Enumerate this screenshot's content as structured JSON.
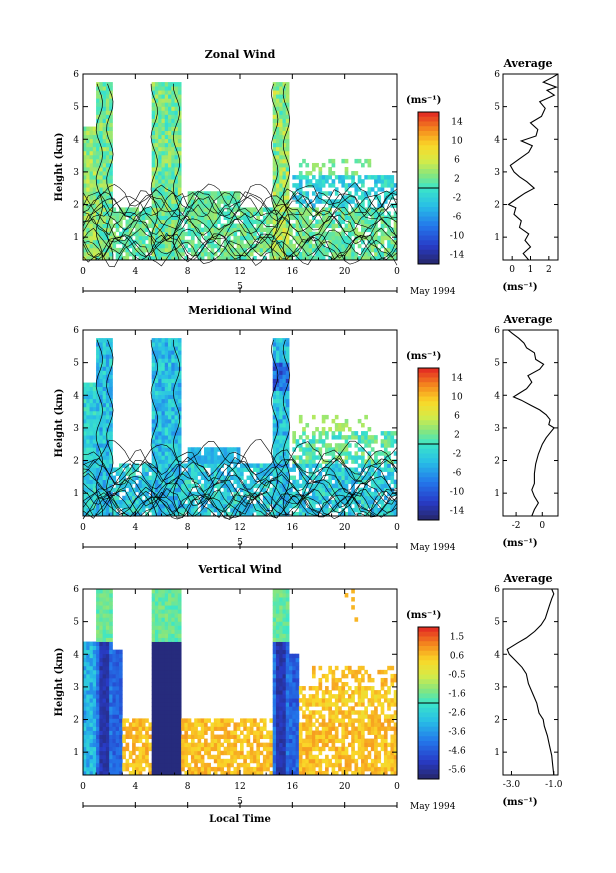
{
  "chart_data": [
    {
      "type": "heatmap",
      "title": "Zonal Wind",
      "ylabel": "Height (km)",
      "xlabel": "",
      "xlim": [
        0,
        24
      ],
      "ylim": [
        0.3,
        6
      ],
      "xticks": [
        "0",
        "4",
        "8",
        "12",
        "16",
        "20",
        "0"
      ],
      "yticks": [
        "1",
        "2",
        "3",
        "4",
        "5",
        "6"
      ],
      "date_marker": "5",
      "date_label": "May 1994",
      "colorbar": {
        "unit": "(ms⁻¹)",
        "range": [
          -16,
          16
        ],
        "ticks": [
          "14",
          "10",
          "6",
          "2",
          "-2",
          "-6",
          "-10",
          "-14"
        ]
      },
      "contours": true,
      "profile": {
        "title": "Average",
        "xlabel": "(ms⁻¹)",
        "xlim": [
          -0.5,
          2.5
        ],
        "xticks": [
          "0",
          "1",
          "2"
        ],
        "yticks": [
          "1",
          "2",
          "3",
          "4",
          "5",
          "6"
        ],
        "points": [
          [
            0.9,
            0.3
          ],
          [
            0.6,
            0.5
          ],
          [
            1.0,
            0.7
          ],
          [
            0.7,
            0.9
          ],
          [
            0.9,
            1.1
          ],
          [
            0.4,
            1.3
          ],
          [
            0.5,
            1.5
          ],
          [
            0.1,
            1.7
          ],
          [
            0.2,
            1.9
          ],
          [
            -0.2,
            2.0
          ],
          [
            0.3,
            2.2
          ],
          [
            0.7,
            2.35
          ],
          [
            1.2,
            2.5
          ],
          [
            0.8,
            2.7
          ],
          [
            0.4,
            2.85
          ],
          [
            0.1,
            3.0
          ],
          [
            -0.1,
            3.2
          ],
          [
            0.4,
            3.4
          ],
          [
            0.9,
            3.6
          ],
          [
            1.1,
            3.8
          ],
          [
            0.5,
            3.95
          ],
          [
            1.3,
            4.1
          ],
          [
            1.4,
            4.3
          ],
          [
            1.0,
            4.5
          ],
          [
            1.6,
            4.7
          ],
          [
            1.8,
            4.95
          ],
          [
            1.5,
            5.15
          ],
          [
            2.3,
            5.35
          ],
          [
            1.9,
            5.5
          ],
          [
            2.4,
            5.6
          ],
          [
            1.7,
            5.75
          ],
          [
            2.2,
            5.9
          ],
          [
            2.5,
            6.0
          ]
        ]
      }
    },
    {
      "type": "heatmap",
      "title": "Meridional Wind",
      "ylabel": "Height (km)",
      "xlabel": "",
      "xlim": [
        0,
        24
      ],
      "ylim": [
        0.3,
        6
      ],
      "xticks": [
        "0",
        "4",
        "8",
        "12",
        "16",
        "20",
        "0"
      ],
      "yticks": [
        "1",
        "2",
        "3",
        "4",
        "5",
        "6"
      ],
      "date_marker": "5",
      "date_label": "May 1994",
      "colorbar": {
        "unit": "(ms⁻¹)",
        "range": [
          -16,
          16
        ],
        "ticks": [
          "14",
          "10",
          "6",
          "2",
          "-2",
          "-6",
          "-10",
          "-14"
        ]
      },
      "contours": true,
      "profile": {
        "title": "Average",
        "xlabel": "(ms⁻¹)",
        "xlim": [
          -3,
          1.2
        ],
        "xticks": [
          "-2",
          "0"
        ],
        "yticks": [
          "1",
          "2",
          "3",
          "4",
          "5",
          "6"
        ],
        "points": [
          [
            -0.8,
            0.3
          ],
          [
            -0.6,
            0.5
          ],
          [
            -0.3,
            0.7
          ],
          [
            -0.6,
            0.9
          ],
          [
            -0.8,
            1.1
          ],
          [
            -0.6,
            1.3
          ],
          [
            -0.6,
            1.6
          ],
          [
            -0.5,
            1.9
          ],
          [
            -0.3,
            2.2
          ],
          [
            0.0,
            2.5
          ],
          [
            0.3,
            2.7
          ],
          [
            0.6,
            2.85
          ],
          [
            0.9,
            3.0
          ],
          [
            0.5,
            3.1
          ],
          [
            0.6,
            3.25
          ],
          [
            0.3,
            3.4
          ],
          [
            -0.2,
            3.55
          ],
          [
            -0.9,
            3.7
          ],
          [
            -1.6,
            3.85
          ],
          [
            -2.2,
            3.95
          ],
          [
            -1.8,
            4.05
          ],
          [
            -1.2,
            4.2
          ],
          [
            -0.8,
            4.4
          ],
          [
            -1.1,
            4.6
          ],
          [
            -0.2,
            4.8
          ],
          [
            0.1,
            4.95
          ],
          [
            -0.5,
            5.1
          ],
          [
            -0.6,
            5.3
          ],
          [
            -1.2,
            5.45
          ],
          [
            -1.4,
            5.6
          ],
          [
            -1.8,
            5.75
          ],
          [
            -2.3,
            5.9
          ],
          [
            -2.6,
            6.0
          ]
        ]
      }
    },
    {
      "type": "heatmap",
      "title": "Vertical Wind",
      "ylabel": "Height (km)",
      "xlabel": "Local Time",
      "xlim": [
        0,
        24
      ],
      "ylim": [
        0.3,
        6
      ],
      "xticks": [
        "0",
        "4",
        "8",
        "12",
        "16",
        "20",
        "0"
      ],
      "yticks": [
        "1",
        "2",
        "3",
        "4",
        "5",
        "6"
      ],
      "date_marker": "5",
      "date_label": "May 1994",
      "colorbar": {
        "unit": "(ms⁻¹)",
        "range": [
          -6.0,
          2.0
        ],
        "ticks": [
          "1.5",
          "0.6",
          "-0.5",
          "-1.6",
          "-2.6",
          "-3.6",
          "-4.6",
          "-5.6"
        ]
      },
      "contours": false,
      "profile": {
        "title": "Average",
        "xlabel": "(ms⁻¹)",
        "xlim": [
          -3.4,
          -0.8
        ],
        "xticks": [
          "-3.0",
          "-1.0"
        ],
        "yticks": [
          "1",
          "2",
          "3",
          "4",
          "5",
          "6"
        ],
        "points": [
          [
            -1.0,
            0.3
          ],
          [
            -1.05,
            0.6
          ],
          [
            -1.1,
            0.9
          ],
          [
            -1.2,
            1.2
          ],
          [
            -1.3,
            1.5
          ],
          [
            -1.45,
            1.8
          ],
          [
            -1.5,
            2.0
          ],
          [
            -1.7,
            2.2
          ],
          [
            -1.8,
            2.5
          ],
          [
            -2.0,
            2.8
          ],
          [
            -2.2,
            3.1
          ],
          [
            -2.3,
            3.4
          ],
          [
            -2.5,
            3.6
          ],
          [
            -2.8,
            3.8
          ],
          [
            -3.1,
            4.0
          ],
          [
            -3.2,
            4.15
          ],
          [
            -2.7,
            4.35
          ],
          [
            -2.3,
            4.5
          ],
          [
            -1.9,
            4.7
          ],
          [
            -1.6,
            4.9
          ],
          [
            -1.4,
            5.1
          ],
          [
            -1.3,
            5.3
          ],
          [
            -1.2,
            5.5
          ],
          [
            -1.1,
            5.7
          ],
          [
            -1.0,
            5.85
          ],
          [
            -1.1,
            6.0
          ]
        ]
      }
    }
  ]
}
